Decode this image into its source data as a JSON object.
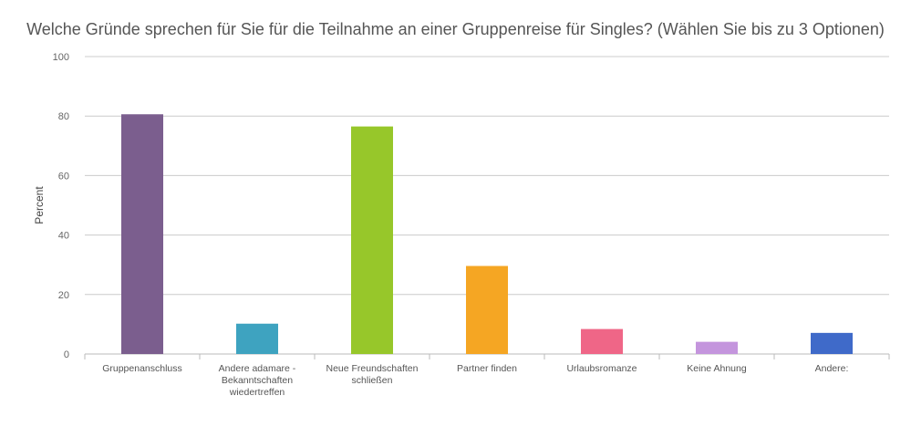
{
  "chart_data": {
    "type": "bar",
    "title": "Welche Gründe sprechen für Sie für die Teilnahme an einer Gruppenreise für Singles? (Wählen Sie bis zu 3 Optionen)",
    "xlabel": "",
    "ylabel": "Percent",
    "ylim": [
      0,
      100
    ],
    "yticks": [
      0,
      20,
      40,
      60,
      80,
      100
    ],
    "grid": true,
    "categories": [
      [
        "Gruppenanschluss"
      ],
      [
        "Andere adamare -",
        "Bekanntschaften",
        "wiedertreffen"
      ],
      [
        "Neue Freundschaften",
        "schließen"
      ],
      [
        "Partner finden"
      ],
      [
        "Urlaubsromanze"
      ],
      [
        "Keine Ahnung"
      ],
      [
        "Andere:"
      ]
    ],
    "values": [
      80.6,
      10.2,
      76.5,
      29.6,
      8.4,
      4.1,
      7.1
    ],
    "colors": [
      "#7b5e8e",
      "#3ea3c0",
      "#97c72a",
      "#f5a623",
      "#ef6687",
      "#c495dd",
      "#3f6ac9"
    ]
  }
}
